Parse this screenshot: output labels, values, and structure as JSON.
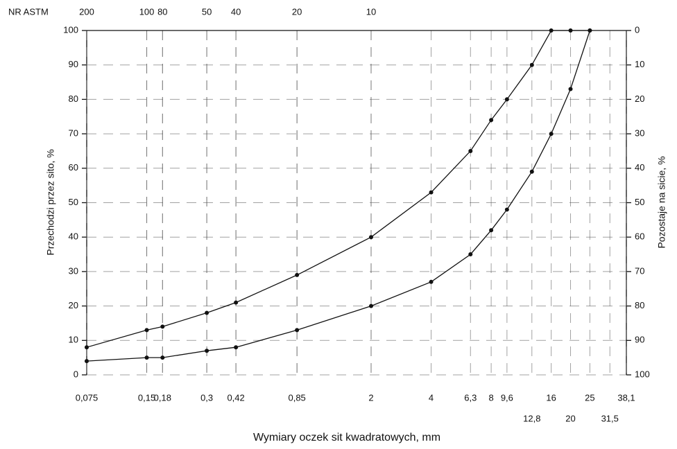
{
  "chart_data": {
    "type": "line",
    "x_label": "Wymiary oczek sit kwadratowych, mm",
    "y_label": "Przechodzi przez sito, %",
    "y2_label": "Pozostaje na sicie, %",
    "top_axis_label": "NR ASTM",
    "xscale": "log",
    "xlim": [
      0.075,
      38.1
    ],
    "ylim": [
      0,
      100
    ],
    "y2lim": [
      100,
      0
    ],
    "grid": true,
    "xticks": [
      {
        "value": 0.075,
        "label": "0,075"
      },
      {
        "value": 0.15,
        "label": "0,15"
      },
      {
        "value": 0.18,
        "label": "0,18"
      },
      {
        "value": 0.3,
        "label": "0,3"
      },
      {
        "value": 0.42,
        "label": "0,42"
      },
      {
        "value": 0.85,
        "label": "0,85"
      },
      2,
      4,
      {
        "value": 6.3,
        "label": "6,3"
      },
      8,
      {
        "value": 9.6,
        "label": "9,6"
      },
      16,
      25,
      {
        "value": 38.1,
        "label": "38,1"
      }
    ],
    "xticks_second_row": [
      {
        "value": 12.8,
        "label": "12,8"
      },
      20,
      {
        "value": 31.5,
        "label": "31,5"
      }
    ],
    "top_ticks": [
      {
        "value": 0.075,
        "label": "200"
      },
      {
        "value": 0.15,
        "label": "100"
      },
      {
        "value": 0.18,
        "label": "80"
      },
      {
        "value": 0.3,
        "label": "50"
      },
      {
        "value": 0.42,
        "label": "40"
      },
      {
        "value": 0.85,
        "label": "20"
      },
      {
        "value": 2,
        "label": "10"
      }
    ],
    "yticks": [
      0,
      10,
      20,
      30,
      40,
      50,
      60,
      70,
      80,
      90,
      100
    ],
    "y2ticks": [
      0,
      10,
      20,
      30,
      40,
      50,
      60,
      70,
      80,
      90,
      100
    ],
    "series": [
      {
        "color": "#111111",
        "x": [
          0.075,
          0.15,
          0.18,
          0.3,
          0.42,
          0.85,
          2,
          4,
          6.3,
          8,
          9.6,
          12.8,
          16,
          20,
          25
        ],
        "values": [
          8,
          13,
          14,
          18,
          21,
          29,
          40,
          53,
          65,
          74,
          80,
          90,
          100,
          100,
          100
        ]
      },
      {
        "color": "#111111",
        "x": [
          0.075,
          0.15,
          0.18,
          0.3,
          0.42,
          0.85,
          2,
          4,
          6.3,
          8,
          9.6,
          12.8,
          16,
          20,
          25
        ],
        "values": [
          4,
          5,
          5,
          7,
          8,
          13,
          20,
          27,
          35,
          42,
          48,
          59,
          70,
          83,
          100
        ]
      }
    ]
  }
}
